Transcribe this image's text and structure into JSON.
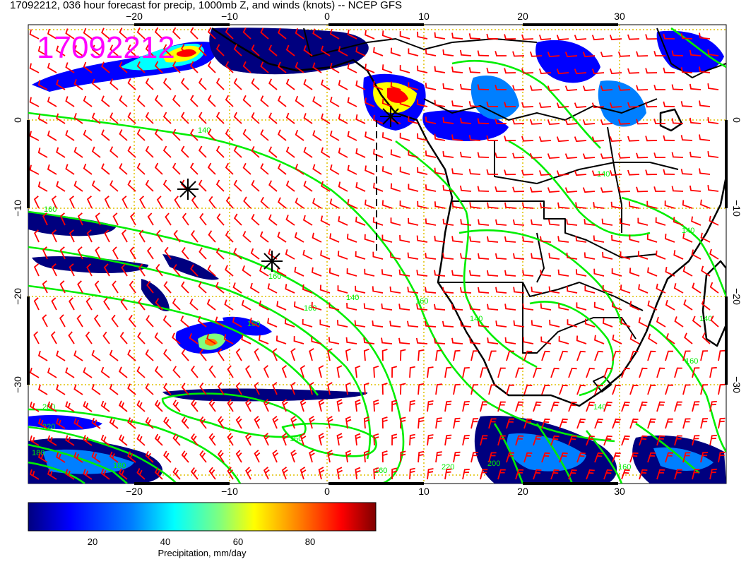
{
  "title": "17092212, 036 hour forecast for precip, 1000mb Z, and winds (knots) -- NCEP GFS",
  "stamp": "17092212",
  "axes": {
    "lon_ticks": [
      "−20",
      "−10",
      "0",
      "10",
      "20",
      "30"
    ],
    "lat_ticks": [
      "0",
      "−10",
      "−20",
      "−30"
    ]
  },
  "contour_labels": [
    "140",
    "160",
    "140",
    "160",
    "140",
    "140",
    "160",
    "160",
    "140",
    "140",
    "160",
    "160",
    "200",
    "220",
    "180",
    "220",
    "160",
    "200",
    "160",
    "180",
    "160",
    "140"
  ],
  "colorbar": {
    "title": "Precipitation, mm/day",
    "tick_labels": [
      "20",
      "40",
      "60",
      "80"
    ],
    "colors": [
      "#00007f",
      "#0000ff",
      "#007fff",
      "#00ffff",
      "#7fff7f",
      "#ffff00",
      "#ff7f00",
      "#ff0000",
      "#7f0000"
    ]
  },
  "colors": {
    "contour": "#00ee00",
    "barb": "#ff0000",
    "grid": "#e0c000",
    "coast": "#000000",
    "stamp": "#ff00ff"
  },
  "icons": [
    "storm-marker-icon",
    "storm-marker-icon",
    "storm-marker-icon"
  ]
}
